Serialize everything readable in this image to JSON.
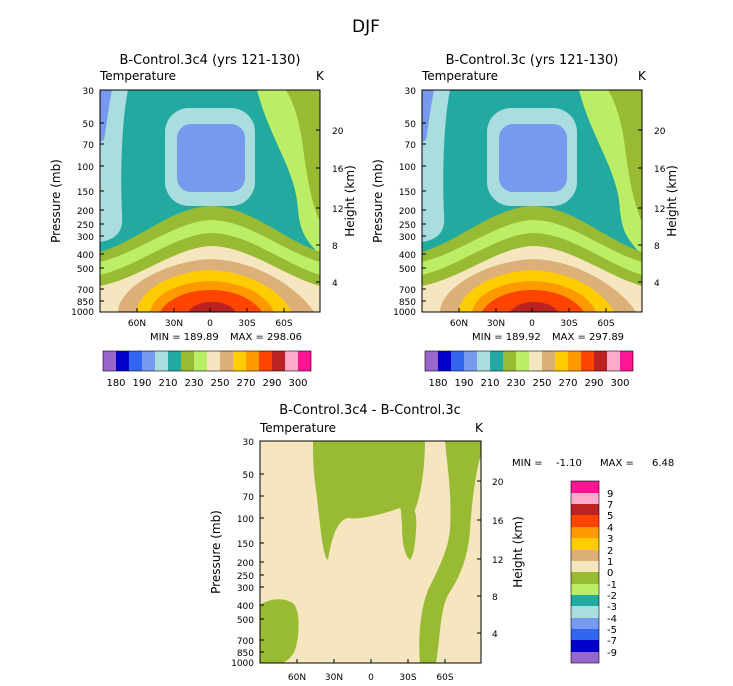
{
  "title": "DJF",
  "colors": {
    "c180": "#9966cc",
    "c185": "#0000cc",
    "c190": "#3366ee",
    "c200": "#7799ee",
    "c210": "#aadddd",
    "c220": "#22aaa0",
    "c230": "#99bb33",
    "c240": "#bbee66",
    "c250": "#f5e6c0",
    "c260": "#ddb07a",
    "c270": "#ffcc00",
    "c280": "#ff9900",
    "c290": "#ff4400",
    "c295": "#bb2222",
    "c298": "#ffaacc",
    "c300": "#ff1493",
    "d_pos_small": "#f5e6c0",
    "d_neg_small": "#99bb33"
  },
  "chart_data": [
    {
      "id": "panel_left",
      "type": "contour",
      "title": "B-Control.3c4 (yrs 121-130)",
      "variable": "Temperature",
      "units": "K",
      "ylabel": "Pressure (mb)",
      "ylabel_right": "Height (km)",
      "pressure_ticks": [
        "30",
        "50",
        "70",
        "100",
        "150",
        "200",
        "250",
        "300",
        "400",
        "500",
        "700",
        "850",
        "1000"
      ],
      "height_ticks": [
        "20",
        "16",
        "12",
        "8",
        "4"
      ],
      "lat_ticks": [
        "60N",
        "30N",
        "0",
        "30S",
        "60S"
      ],
      "min_label": "MIN = 189.89",
      "max_label": "MAX = 298.06",
      "min": 189.89,
      "max": 298.06
    },
    {
      "id": "panel_right",
      "type": "contour",
      "title": "B-Control.3c (yrs 121-130)",
      "variable": "Temperature",
      "units": "K",
      "ylabel": "Pressure (mb)",
      "ylabel_right": "Height (km)",
      "pressure_ticks": [
        "30",
        "50",
        "70",
        "100",
        "150",
        "200",
        "250",
        "300",
        "400",
        "500",
        "700",
        "850",
        "1000"
      ],
      "height_ticks": [
        "20",
        "16",
        "12",
        "8",
        "4"
      ],
      "lat_ticks": [
        "60N",
        "30N",
        "0",
        "30S",
        "60S"
      ],
      "min_label": "MIN = 189.92",
      "max_label": "MAX = 297.89",
      "min": 189.92,
      "max": 297.89
    },
    {
      "id": "panel_diff",
      "type": "contour",
      "title": "B-Control.3c4 - B-Control.3c",
      "variable": "Temperature",
      "units": "K",
      "ylabel": "Pressure (mb)",
      "ylabel_right": "Height (km)",
      "pressure_ticks": [
        "30",
        "50",
        "70",
        "100",
        "150",
        "200",
        "250",
        "300",
        "400",
        "500",
        "700",
        "850",
        "1000"
      ],
      "height_ticks": [
        "20",
        "16",
        "12",
        "8",
        "4"
      ],
      "lat_ticks": [
        "60N",
        "30N",
        "0",
        "30S",
        "60S"
      ],
      "min_label": "MIN =",
      "min_value": "-1.10",
      "max_label": "MAX =",
      "max_value": "6.48",
      "min": -1.1,
      "max": 6.48
    }
  ],
  "legend_abs": {
    "labels": [
      "180",
      "190",
      "210",
      "230",
      "250",
      "270",
      "290",
      "300"
    ]
  },
  "legend_diff": {
    "labels": [
      "9",
      "7",
      "5",
      "4",
      "3",
      "2",
      "1",
      "0",
      "-1",
      "-2",
      "-3",
      "-4",
      "-5",
      "-7",
      "-9"
    ]
  }
}
